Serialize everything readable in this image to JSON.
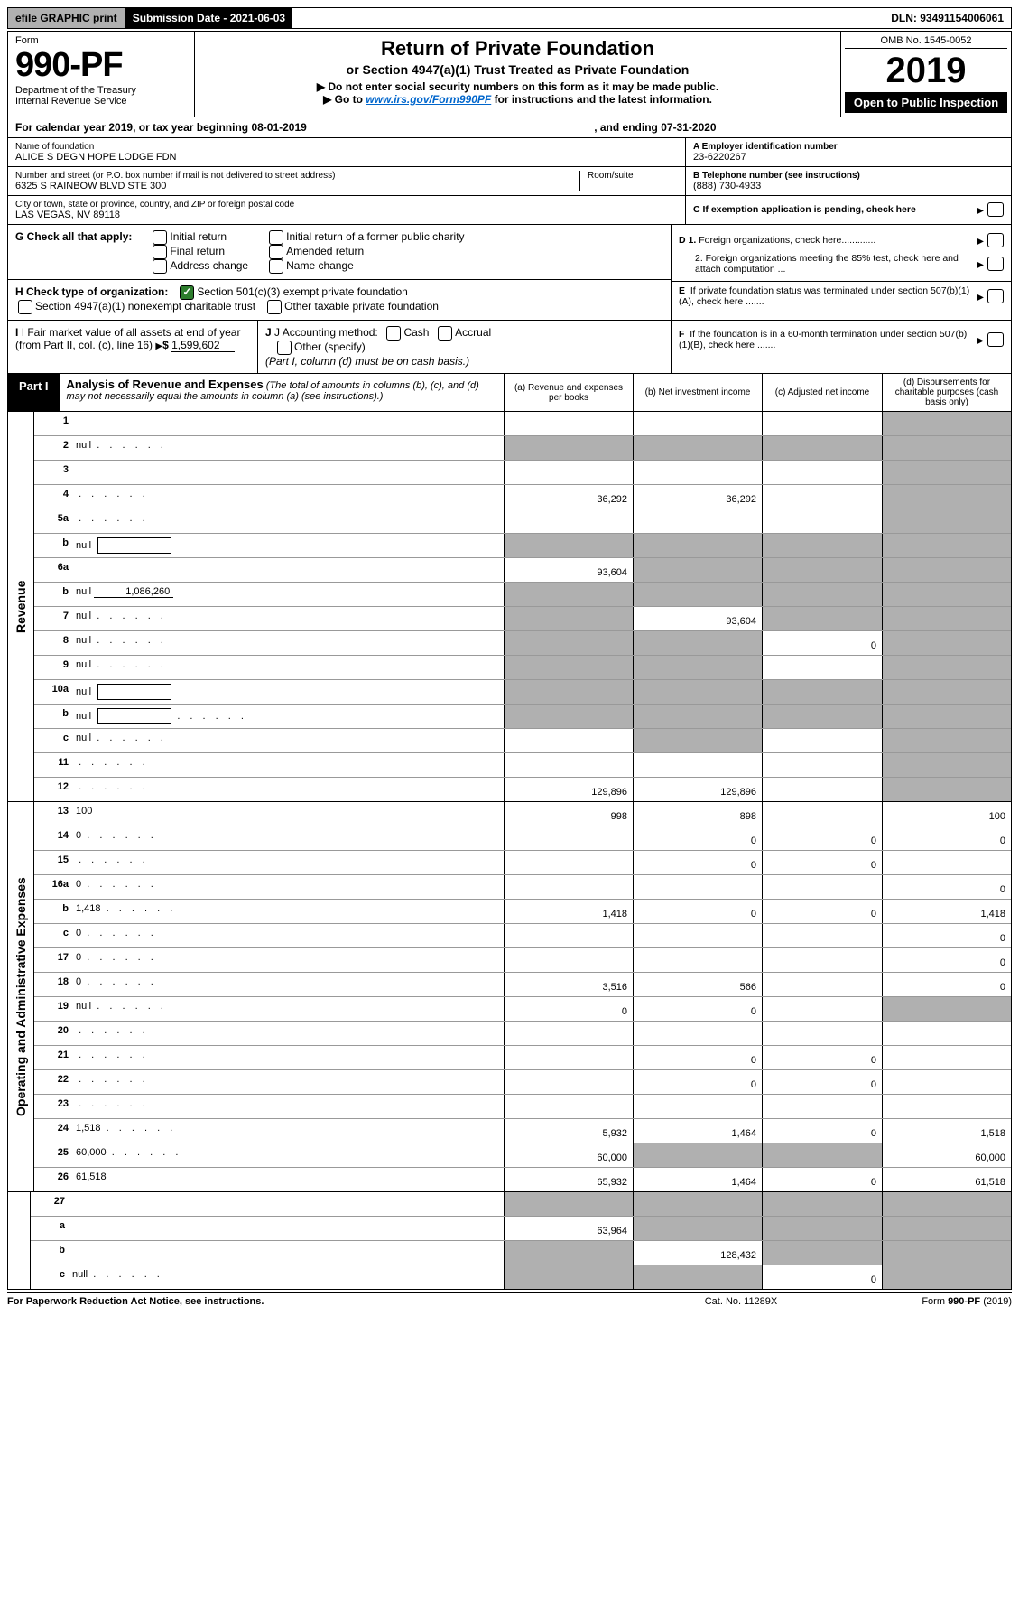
{
  "top": {
    "efile": "efile GRAPHIC print",
    "submission": "Submission Date - 2021-06-03",
    "dln": "DLN: 93491154006061"
  },
  "header": {
    "form_label": "Form",
    "form_number": "990-PF",
    "dept1": "Department of the Treasury",
    "dept2": "Internal Revenue Service",
    "title": "Return of Private Foundation",
    "subtitle": "or Section 4947(a)(1) Trust Treated as Private Foundation",
    "note1": "▶ Do not enter social security numbers on this form as it may be made public.",
    "note2_pre": "▶ Go to ",
    "note2_link": "www.irs.gov/Form990PF",
    "note2_post": " for instructions and the latest information.",
    "omb": "OMB No. 1545-0052",
    "year": "2019",
    "inspection": "Open to Public Inspection"
  },
  "cal": {
    "text": "For calendar year 2019, or tax year beginning 08-01-2019",
    "ending": ", and ending 07-31-2020"
  },
  "name_block": {
    "name_label": "Name of foundation",
    "name": "ALICE S DEGN HOPE LODGE FDN",
    "addr_label": "Number and street (or P.O. box number if mail is not delivered to street address)",
    "addr": "6325 S RAINBOW BLVD STE 300",
    "suite_label": "Room/suite",
    "city_label": "City or town, state or province, country, and ZIP or foreign postal code",
    "city": "LAS VEGAS, NV  89118",
    "ein_label": "A Employer identification number",
    "ein": "23-6220267",
    "phone_label": "B Telephone number (see instructions)",
    "phone": "(888) 730-4933",
    "c_label": "C If exemption application is pending, check here"
  },
  "g_block": {
    "g_label": "G Check all that apply:",
    "opts": [
      "Initial return",
      "Final return",
      "Address change",
      "Initial return of a former public charity",
      "Amended return",
      "Name change"
    ],
    "h_label": "H Check type of organization:",
    "h1": "Section 501(c)(3) exempt private foundation",
    "h2": "Section 4947(a)(1) nonexempt charitable trust",
    "h3": "Other taxable private foundation",
    "d1": "D 1. Foreign organizations, check here",
    "d2": "2. Foreign organizations meeting the 85% test, check here and attach computation ...",
    "e": "E  If private foundation status was terminated under section 507(b)(1)(A), check here .......",
    "f": "F  If the foundation is in a 60-month termination under section 507(b)(1)(B), check here ......."
  },
  "i_block": {
    "i_label": "I Fair market value of all assets at end of year (from Part II, col. (c), line 16)",
    "i_val": "1,599,602",
    "j_label": "J Accounting method:",
    "j_cash": "Cash",
    "j_accrual": "Accrual",
    "j_other": "Other (specify)",
    "j_note": "(Part I, column (d) must be on cash basis.)"
  },
  "part1": {
    "tab": "Part I",
    "title": "Analysis of Revenue and Expenses",
    "note": "(The total of amounts in columns (b), (c), and (d) may not necessarily equal the amounts in column (a) (see instructions).)",
    "cols": {
      "a": "(a)  Revenue and expenses per books",
      "b": "(b)  Net investment income",
      "c": "(c)  Adjusted net income",
      "d": "(d)  Disbursements for charitable purposes (cash basis only)"
    }
  },
  "sections": {
    "rev_label": "Revenue",
    "exp_label": "Operating and Administrative Expenses"
  },
  "lines": [
    {
      "n": "1",
      "d": "",
      "a": "",
      "b": "",
      "c": "",
      "sd": true
    },
    {
      "n": "2",
      "d": null,
      "dots": true,
      "a": null,
      "b": null,
      "c": null,
      "sa": true,
      "sb": true,
      "sc": true,
      "sd": true
    },
    {
      "n": "3",
      "d": "",
      "a": "",
      "b": "",
      "c": "",
      "sd": true
    },
    {
      "n": "4",
      "d": "",
      "dots": true,
      "a": "36,292",
      "b": "36,292",
      "c": "",
      "sd": true
    },
    {
      "n": "5a",
      "d": "",
      "dots": true,
      "a": "",
      "b": "",
      "c": "",
      "sd": true
    },
    {
      "n": "b",
      "d": null,
      "box": true,
      "a": null,
      "b": null,
      "c": null,
      "sa": true,
      "sb": true,
      "sc": true,
      "sd": true
    },
    {
      "n": "6a",
      "d": null,
      "a": "93,604",
      "b": null,
      "c": null,
      "sb": true,
      "sc": true,
      "sd": true
    },
    {
      "n": "b",
      "d": null,
      "amt": "1,086,260",
      "a": null,
      "b": null,
      "c": null,
      "sa": true,
      "sb": true,
      "sc": true,
      "sd": true
    },
    {
      "n": "7",
      "d": null,
      "dots": true,
      "a": null,
      "b": "93,604",
      "c": null,
      "sa": true,
      "sc": true,
      "sd": true
    },
    {
      "n": "8",
      "d": null,
      "dots": true,
      "a": null,
      "b": null,
      "c": "0",
      "sa": true,
      "sb": true,
      "sd": true
    },
    {
      "n": "9",
      "d": null,
      "dots": true,
      "a": null,
      "b": null,
      "c": "",
      "sa": true,
      "sb": true,
      "sd": true
    },
    {
      "n": "10a",
      "d": null,
      "box": true,
      "a": null,
      "b": null,
      "c": null,
      "sa": true,
      "sb": true,
      "sc": true,
      "sd": true
    },
    {
      "n": "b",
      "d": null,
      "dots": true,
      "box": true,
      "a": null,
      "b": null,
      "c": null,
      "sa": true,
      "sb": true,
      "sc": true,
      "sd": true
    },
    {
      "n": "c",
      "d": null,
      "dots": true,
      "a": "",
      "b": null,
      "c": "",
      "sb": true,
      "sd": true
    },
    {
      "n": "11",
      "d": "",
      "dots": true,
      "a": "",
      "b": "",
      "c": "",
      "sd": true
    },
    {
      "n": "12",
      "d": "",
      "dots": true,
      "a": "129,896",
      "b": "129,896",
      "c": "",
      "sd": true
    }
  ],
  "exp_lines": [
    {
      "n": "13",
      "d": "100",
      "a": "998",
      "b": "898",
      "c": ""
    },
    {
      "n": "14",
      "d": "0",
      "dots": true,
      "a": "",
      "b": "0",
      "c": "0"
    },
    {
      "n": "15",
      "d": "",
      "dots": true,
      "a": "",
      "b": "0",
      "c": "0"
    },
    {
      "n": "16a",
      "d": "0",
      "dots": true,
      "a": "",
      "b": "",
      "c": ""
    },
    {
      "n": "b",
      "d": "1,418",
      "dots": true,
      "a": "1,418",
      "b": "0",
      "c": "0"
    },
    {
      "n": "c",
      "d": "0",
      "dots": true,
      "a": "",
      "b": "",
      "c": ""
    },
    {
      "n": "17",
      "d": "0",
      "dots": true,
      "a": "",
      "b": "",
      "c": ""
    },
    {
      "n": "18",
      "d": "0",
      "dots": true,
      "a": "3,516",
      "b": "566",
      "c": ""
    },
    {
      "n": "19",
      "d": null,
      "dots": true,
      "a": "0",
      "b": "0",
      "c": "",
      "sd": true
    },
    {
      "n": "20",
      "d": "",
      "dots": true,
      "a": "",
      "b": "",
      "c": ""
    },
    {
      "n": "21",
      "d": "",
      "dots": true,
      "a": "",
      "b": "0",
      "c": "0"
    },
    {
      "n": "22",
      "d": "",
      "dots": true,
      "a": "",
      "b": "0",
      "c": "0"
    },
    {
      "n": "23",
      "d": "",
      "dots": true,
      "a": "",
      "b": "",
      "c": ""
    },
    {
      "n": "24",
      "d": "1,518",
      "dots": true,
      "a": "5,932",
      "b": "1,464",
      "c": "0"
    },
    {
      "n": "25",
      "d": "60,000",
      "dots": true,
      "a": "60,000",
      "b": null,
      "c": null,
      "sb": true,
      "sc": true
    },
    {
      "n": "26",
      "d": "61,518",
      "a": "65,932",
      "b": "1,464",
      "c": "0"
    }
  ],
  "bottom_lines": [
    {
      "n": "27",
      "d": null,
      "a": null,
      "b": null,
      "c": null,
      "sa": true,
      "sb": true,
      "sc": true,
      "sd": true
    },
    {
      "n": "a",
      "d": null,
      "a": "63,964",
      "b": null,
      "c": null,
      "sb": true,
      "sc": true,
      "sd": true
    },
    {
      "n": "b",
      "d": null,
      "a": null,
      "b": "128,432",
      "c": null,
      "sa": true,
      "sc": true,
      "sd": true
    },
    {
      "n": "c",
      "d": null,
      "dots": true,
      "a": null,
      "b": null,
      "c": "0",
      "sa": true,
      "sb": true,
      "sd": true
    }
  ],
  "footer": {
    "left": "For Paperwork Reduction Act Notice, see instructions.",
    "center": "Cat. No. 11289X",
    "right": "Form 990-PF (2019)"
  }
}
